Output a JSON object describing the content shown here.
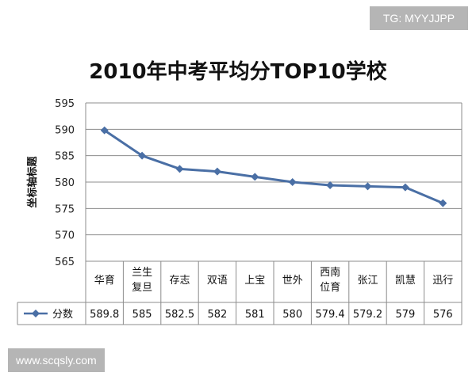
{
  "watermarks": {
    "top": "TG: MYYJJPP",
    "bottom": "www.scqsly.com"
  },
  "chart_data": {
    "type": "line",
    "title": "2010年中考平均分TOP10学校",
    "ylabel": "坐标轴标题",
    "xlabel": "",
    "ylim": [
      565,
      595
    ],
    "yticks": [
      565,
      570,
      575,
      580,
      585,
      590,
      595
    ],
    "grid": true,
    "legend": "bottom-left (data table)",
    "categories": [
      [
        "华育"
      ],
      [
        "兰生",
        "复旦"
      ],
      [
        "存志"
      ],
      [
        "双语"
      ],
      [
        "上宝"
      ],
      [
        "世外"
      ],
      [
        "西南",
        "位育"
      ],
      [
        "张江"
      ],
      [
        "凯慧"
      ],
      [
        "迅行"
      ]
    ],
    "series": [
      {
        "name": "分数",
        "color": "#4a6fa5",
        "values": [
          589.8,
          585,
          582.5,
          582,
          581,
          580,
          579.4,
          579.2,
          579,
          576
        ],
        "labels": [
          "589.8",
          "585",
          "582.5",
          "582",
          "581",
          "580",
          "579.4",
          "579.2",
          "579",
          "576"
        ]
      }
    ]
  }
}
